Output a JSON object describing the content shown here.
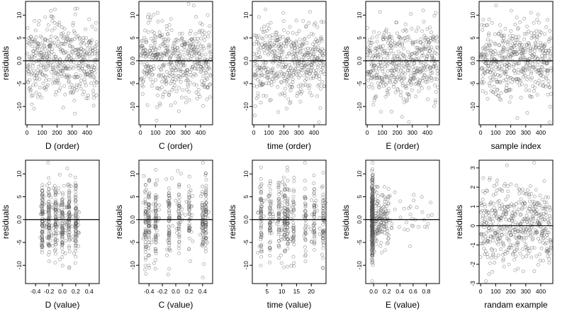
{
  "chart_data": [
    {
      "type": "scatter",
      "xlabel": "D (order)",
      "ylabel": "residuals",
      "dist": "uniform",
      "xlim": [
        -10,
        480
      ],
      "ylim": [
        -14,
        13
      ],
      "xticks": [
        0,
        100,
        200,
        300,
        400
      ],
      "xtick_labels": [
        "0",
        "100",
        "200",
        "300",
        "400"
      ],
      "yticks": [
        -10,
        -5,
        0,
        5,
        10
      ],
      "ytick_labels": [
        "-10",
        "-5",
        "0.0",
        "5",
        "10"
      ],
      "ref_line": 0,
      "n": 470
    },
    {
      "type": "scatter",
      "xlabel": "C (order)",
      "ylabel": "residuals",
      "dist": "uniform",
      "xlim": [
        -10,
        480
      ],
      "ylim": [
        -14,
        13
      ],
      "xticks": [
        0,
        100,
        200,
        300,
        400
      ],
      "xtick_labels": [
        "0",
        "100",
        "200",
        "300",
        "400"
      ],
      "yticks": [
        -10,
        -5,
        0,
        5,
        10
      ],
      "ytick_labels": [
        "-10",
        "-5",
        "0.0",
        "5",
        "10"
      ],
      "ref_line": 0,
      "n": 470
    },
    {
      "type": "scatter",
      "xlabel": "time (order)",
      "ylabel": "residuals",
      "dist": "uniform",
      "xlim": [
        -10,
        480
      ],
      "ylim": [
        -14,
        13
      ],
      "xticks": [
        0,
        100,
        200,
        300,
        400
      ],
      "xtick_labels": [
        "0",
        "100",
        "200",
        "300",
        "400"
      ],
      "yticks": [
        -10,
        -5,
        0,
        5,
        10
      ],
      "ytick_labels": [
        "-10",
        "-5",
        "0.0",
        "5",
        "10"
      ],
      "ref_line": 0,
      "n": 470
    },
    {
      "type": "scatter",
      "xlabel": "E (order)",
      "ylabel": "residuals",
      "dist": "uniform",
      "xlim": [
        -10,
        480
      ],
      "ylim": [
        -14,
        13
      ],
      "xticks": [
        0,
        100,
        200,
        300,
        400
      ],
      "xtick_labels": [
        "0",
        "100",
        "200",
        "300",
        "400"
      ],
      "yticks": [
        -10,
        -5,
        0,
        5,
        10
      ],
      "ytick_labels": [
        "-10",
        "-5",
        "0.0",
        "5",
        "10"
      ],
      "ref_line": 0,
      "n": 470
    },
    {
      "type": "scatter",
      "xlabel": "sample index",
      "ylabel": "residuals",
      "dist": "uniform",
      "xlim": [
        -10,
        480
      ],
      "ylim": [
        -14,
        13
      ],
      "xticks": [
        0,
        100,
        200,
        300,
        400
      ],
      "xtick_labels": [
        "0",
        "100",
        "200",
        "300",
        "400"
      ],
      "yticks": [
        -10,
        -5,
        0,
        5,
        10
      ],
      "ytick_labels": [
        "-10",
        "-5",
        "0.0",
        "5",
        "10"
      ],
      "ref_line": 0,
      "n": 470
    },
    {
      "type": "scatter",
      "xlabel": "D (value)",
      "ylabel": "residuals",
      "dist": "bands",
      "bands": [
        -0.3,
        -0.2,
        -0.1,
        0,
        0.1,
        0.2
      ],
      "xlim": [
        -0.55,
        0.55
      ],
      "ylim": [
        -14,
        13
      ],
      "xticks": [
        -0.4,
        -0.2,
        0,
        0.2,
        0.4
      ],
      "xtick_labels": [
        "-0.4",
        "-0.2",
        "0.0",
        "0.2",
        "0.4"
      ],
      "yticks": [
        -10,
        -5,
        0,
        5,
        10
      ],
      "ytick_labels": [
        "-10",
        "-5",
        "0.0",
        "5",
        "10"
      ],
      "ref_line": 0,
      "n": 470
    },
    {
      "type": "scatter",
      "xlabel": "C (value)",
      "ylabel": "residuals",
      "dist": "bands",
      "bands": [
        -0.45,
        -0.4,
        -0.3,
        -0.1,
        0.05,
        0.2,
        0.4,
        0.45
      ],
      "xlim": [
        -0.55,
        0.55
      ],
      "ylim": [
        -14,
        13
      ],
      "xticks": [
        -0.4,
        -0.2,
        0,
        0.2,
        0.4
      ],
      "xtick_labels": [
        "-0.4",
        "-0.2",
        "0.0",
        "0.2",
        "0.4"
      ],
      "yticks": [
        -10,
        -5,
        0,
        5,
        10
      ],
      "ytick_labels": [
        "-10",
        "-5",
        "0.0",
        "5",
        "10"
      ],
      "ref_line": 0,
      "n": 470
    },
    {
      "type": "scatter",
      "xlabel": "time (value)",
      "ylabel": "residuals",
      "dist": "bands",
      "bands": [
        3,
        6,
        9,
        11,
        12,
        14,
        18,
        21,
        24
      ],
      "xlim": [
        0,
        25
      ],
      "ylim": [
        -14,
        13
      ],
      "xticks": [
        5,
        10,
        15,
        20
      ],
      "xtick_labels": [
        "5",
        "10",
        "15",
        "20"
      ],
      "yticks": [
        -10,
        -5,
        0,
        5,
        10
      ],
      "ytick_labels": [
        "-10",
        "-5",
        "0.0",
        "5",
        "10"
      ],
      "ref_line": 0,
      "n": 470
    },
    {
      "type": "scatter",
      "xlabel": "E (value)",
      "ylabel": "residuals",
      "dist": "skew",
      "xlim": [
        -0.12,
        1.0
      ],
      "ylim": [
        -14,
        13
      ],
      "xticks": [
        0,
        0.2,
        0.4,
        0.6,
        0.8
      ],
      "xtick_labels": [
        "0.0",
        "0.2",
        "0.4",
        "0.6",
        "0.8"
      ],
      "yticks": [
        -10,
        -5,
        0,
        5,
        10
      ],
      "ytick_labels": [
        "-10",
        "-5",
        "0.0",
        "5",
        "10"
      ],
      "ref_line": 0,
      "n": 470
    },
    {
      "type": "scatter",
      "xlabel": "randam example",
      "ylabel": "residuals",
      "dist": "normal",
      "xlim": [
        -10,
        480
      ],
      "ylim": [
        -3,
        3.4
      ],
      "xticks": [
        0,
        100,
        200,
        300,
        400
      ],
      "xtick_labels": [
        "0",
        "100",
        "200",
        "300",
        "400"
      ],
      "yticks": [
        -3,
        -2,
        -1,
        0,
        1,
        2,
        3
      ],
      "ytick_labels": [
        "-3",
        "-2",
        "-1",
        "0",
        "1",
        "2",
        "3"
      ],
      "ref_line": 0,
      "n": 470
    }
  ]
}
